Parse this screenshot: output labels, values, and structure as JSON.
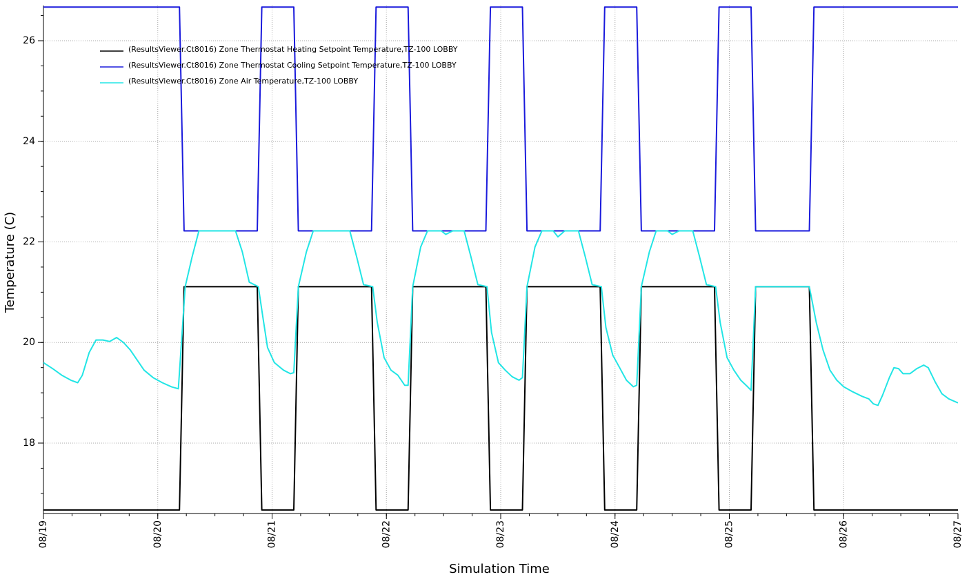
{
  "chart_data": {
    "type": "line",
    "xlabel": "Simulation Time",
    "ylabel": "Temperature (C)",
    "xlim": [
      0,
      8
    ],
    "ylim": [
      16.6,
      26.7
    ],
    "x_ticks": [
      {
        "x": 0,
        "label": "08/19"
      },
      {
        "x": 1,
        "label": "08/20"
      },
      {
        "x": 2,
        "label": "08/21"
      },
      {
        "x": 3,
        "label": "08/22"
      },
      {
        "x": 4,
        "label": "08/23"
      },
      {
        "x": 5,
        "label": "08/24"
      },
      {
        "x": 6,
        "label": "08/25"
      },
      {
        "x": 7,
        "label": "08/26"
      },
      {
        "x": 8,
        "label": "08/27"
      }
    ],
    "y_ticks": [
      18,
      20,
      22,
      24,
      26
    ],
    "grid": true,
    "legend_position": "top-left",
    "series": [
      {
        "name": "(ResultsViewer.Ct8016) Zone Thermostat Heating Setpoint Temperature,TZ-100 LOBBY",
        "color": "#000000",
        "points": [
          [
            0,
            16.67
          ],
          [
            1.19,
            16.67
          ],
          [
            1.23,
            21.11
          ],
          [
            1.87,
            21.11
          ],
          [
            1.91,
            16.67
          ],
          [
            2.19,
            16.67
          ],
          [
            2.23,
            21.11
          ],
          [
            2.87,
            21.11
          ],
          [
            2.91,
            16.67
          ],
          [
            3.19,
            16.67
          ],
          [
            3.23,
            21.11
          ],
          [
            3.87,
            21.11
          ],
          [
            3.91,
            16.67
          ],
          [
            4.19,
            16.67
          ],
          [
            4.23,
            21.11
          ],
          [
            4.87,
            21.11
          ],
          [
            4.91,
            16.67
          ],
          [
            5.19,
            16.67
          ],
          [
            5.23,
            21.11
          ],
          [
            5.87,
            21.11
          ],
          [
            5.91,
            16.67
          ],
          [
            6.19,
            16.67
          ],
          [
            6.23,
            21.11
          ],
          [
            6.7,
            21.11
          ],
          [
            6.74,
            16.67
          ],
          [
            8,
            16.67
          ]
        ]
      },
      {
        "name": "(ResultsViewer.Ct8016) Zone Thermostat Cooling Setpoint Temperature,TZ-100 LOBBY",
        "color": "#1a1adc",
        "points": [
          [
            0,
            26.67
          ],
          [
            1.19,
            26.67
          ],
          [
            1.23,
            22.22
          ],
          [
            1.87,
            22.22
          ],
          [
            1.91,
            26.67
          ],
          [
            2.19,
            26.67
          ],
          [
            2.23,
            22.22
          ],
          [
            2.87,
            22.22
          ],
          [
            2.91,
            26.67
          ],
          [
            3.19,
            26.67
          ],
          [
            3.23,
            22.22
          ],
          [
            3.87,
            22.22
          ],
          [
            3.91,
            26.67
          ],
          [
            4.19,
            26.67
          ],
          [
            4.23,
            22.22
          ],
          [
            4.87,
            22.22
          ],
          [
            4.91,
            26.67
          ],
          [
            5.19,
            26.67
          ],
          [
            5.23,
            22.22
          ],
          [
            5.87,
            22.22
          ],
          [
            5.91,
            26.67
          ],
          [
            6.19,
            26.67
          ],
          [
            6.23,
            22.22
          ],
          [
            6.7,
            22.22
          ],
          [
            6.74,
            26.67
          ],
          [
            8,
            26.67
          ]
        ]
      },
      {
        "name": "(ResultsViewer.Ct8016) Zone Air Temperature,TZ-100 LOBBY",
        "color": "#22e5e5",
        "points": [
          [
            0,
            19.6
          ],
          [
            0.08,
            19.48
          ],
          [
            0.16,
            19.35
          ],
          [
            0.24,
            19.25
          ],
          [
            0.3,
            19.2
          ],
          [
            0.34,
            19.35
          ],
          [
            0.4,
            19.8
          ],
          [
            0.46,
            20.05
          ],
          [
            0.52,
            20.05
          ],
          [
            0.58,
            20.02
          ],
          [
            0.64,
            20.1
          ],
          [
            0.7,
            20.0
          ],
          [
            0.76,
            19.85
          ],
          [
            0.82,
            19.65
          ],
          [
            0.88,
            19.45
          ],
          [
            0.96,
            19.3
          ],
          [
            1.04,
            19.2
          ],
          [
            1.12,
            19.12
          ],
          [
            1.18,
            19.08
          ],
          [
            1.24,
            21.11
          ],
          [
            1.3,
            21.7
          ],
          [
            1.36,
            22.22
          ],
          [
            1.68,
            22.22
          ],
          [
            1.74,
            21.8
          ],
          [
            1.8,
            21.2
          ],
          [
            1.88,
            21.11
          ],
          [
            1.92,
            20.5
          ],
          [
            1.96,
            19.9
          ],
          [
            2.02,
            19.6
          ],
          [
            2.1,
            19.45
          ],
          [
            2.16,
            19.38
          ],
          [
            2.19,
            19.4
          ],
          [
            2.23,
            21.11
          ],
          [
            2.3,
            21.8
          ],
          [
            2.36,
            22.22
          ],
          [
            2.68,
            22.22
          ],
          [
            2.74,
            21.7
          ],
          [
            2.8,
            21.15
          ],
          [
            2.88,
            21.11
          ],
          [
            2.92,
            20.4
          ],
          [
            2.98,
            19.7
          ],
          [
            3.04,
            19.45
          ],
          [
            3.1,
            19.35
          ],
          [
            3.16,
            19.15
          ],
          [
            3.19,
            19.15
          ],
          [
            3.23,
            21.11
          ],
          [
            3.3,
            21.9
          ],
          [
            3.36,
            22.22
          ],
          [
            3.48,
            22.22
          ],
          [
            3.52,
            22.15
          ],
          [
            3.58,
            22.22
          ],
          [
            3.68,
            22.22
          ],
          [
            3.74,
            21.7
          ],
          [
            3.8,
            21.15
          ],
          [
            3.88,
            21.11
          ],
          [
            3.92,
            20.2
          ],
          [
            3.98,
            19.6
          ],
          [
            4.04,
            19.45
          ],
          [
            4.1,
            19.32
          ],
          [
            4.16,
            19.25
          ],
          [
            4.19,
            19.3
          ],
          [
            4.23,
            21.11
          ],
          [
            4.3,
            21.9
          ],
          [
            4.36,
            22.22
          ],
          [
            4.46,
            22.22
          ],
          [
            4.5,
            22.1
          ],
          [
            4.56,
            22.22
          ],
          [
            4.68,
            22.22
          ],
          [
            4.74,
            21.7
          ],
          [
            4.8,
            21.15
          ],
          [
            4.88,
            21.11
          ],
          [
            4.92,
            20.3
          ],
          [
            4.98,
            19.75
          ],
          [
            5.04,
            19.5
          ],
          [
            5.1,
            19.25
          ],
          [
            5.16,
            19.12
          ],
          [
            5.19,
            19.15
          ],
          [
            5.23,
            21.11
          ],
          [
            5.3,
            21.8
          ],
          [
            5.36,
            22.22
          ],
          [
            5.46,
            22.22
          ],
          [
            5.5,
            22.15
          ],
          [
            5.56,
            22.22
          ],
          [
            5.68,
            22.22
          ],
          [
            5.74,
            21.7
          ],
          [
            5.8,
            21.15
          ],
          [
            5.88,
            21.11
          ],
          [
            5.92,
            20.4
          ],
          [
            5.98,
            19.7
          ],
          [
            6.04,
            19.45
          ],
          [
            6.1,
            19.25
          ],
          [
            6.16,
            19.12
          ],
          [
            6.19,
            19.05
          ],
          [
            6.23,
            21.11
          ],
          [
            6.7,
            21.11
          ],
          [
            6.76,
            20.4
          ],
          [
            6.82,
            19.85
          ],
          [
            6.88,
            19.45
          ],
          [
            6.94,
            19.25
          ],
          [
            7.0,
            19.12
          ],
          [
            7.08,
            19.02
          ],
          [
            7.16,
            18.93
          ],
          [
            7.22,
            18.88
          ],
          [
            7.26,
            18.78
          ],
          [
            7.3,
            18.75
          ],
          [
            7.34,
            18.95
          ],
          [
            7.4,
            19.3
          ],
          [
            7.44,
            19.5
          ],
          [
            7.48,
            19.48
          ],
          [
            7.52,
            19.38
          ],
          [
            7.58,
            19.38
          ],
          [
            7.64,
            19.48
          ],
          [
            7.7,
            19.55
          ],
          [
            7.74,
            19.5
          ],
          [
            7.8,
            19.22
          ],
          [
            7.86,
            18.98
          ],
          [
            7.92,
            18.88
          ],
          [
            8.0,
            18.8
          ]
        ]
      }
    ]
  }
}
